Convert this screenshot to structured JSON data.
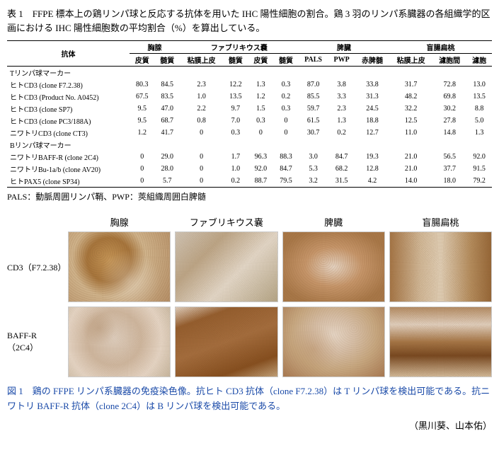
{
  "table_caption": "表 1　FFPE 標本上の鶏リンパ球と反応する抗体を用いた IHC 陽性細胞の割合。鶏 3 羽のリンパ系臓器の各組織学的区画における IHC 陽性細胞数の平均割合（%）を算出している。",
  "header": {
    "antibody": "抗体",
    "organs": [
      "胸腺",
      "ファブリキウス嚢",
      "脾臓",
      "盲腸扁桃"
    ],
    "sub": [
      "皮質",
      "髄質",
      "粘膜上皮",
      "髄質",
      "皮質",
      "髄質",
      "PALS",
      "PWP",
      "赤脾髄",
      "粘膜上皮",
      "濾胞間",
      "濾胞"
    ]
  },
  "sections": [
    {
      "label": "Tリンパ球マーカー"
    },
    {
      "label": "Bリンパ球マーカー"
    }
  ],
  "rows_t": [
    {
      "name": "ヒトCD3 (clone F7.2.38)",
      "v": [
        "80.3",
        "84.5",
        "2.3",
        "12.2",
        "1.3",
        "0.3",
        "87.0",
        "3.8",
        "33.8",
        "31.7",
        "72.8",
        "13.0"
      ]
    },
    {
      "name": "ヒトCD3 (Product No. A0452)",
      "v": [
        "67.5",
        "83.5",
        "1.0",
        "13.5",
        "1.2",
        "0.2",
        "85.5",
        "3.3",
        "31.3",
        "48.2",
        "69.8",
        "13.5"
      ]
    },
    {
      "name": "ヒトCD3 (clone SP7)",
      "v": [
        "9.5",
        "47.0",
        "2.2",
        "9.7",
        "1.5",
        "0.3",
        "59.7",
        "2.3",
        "24.5",
        "32.2",
        "30.2",
        "8.8"
      ]
    },
    {
      "name": "ヒトCD3 (clone PC3/188A)",
      "v": [
        "9.5",
        "68.7",
        "0.8",
        "7.0",
        "0.3",
        "0",
        "61.5",
        "1.3",
        "18.8",
        "12.5",
        "27.8",
        "5.0"
      ]
    },
    {
      "name": "ニワトリCD3 (clone CT3)",
      "v": [
        "1.2",
        "41.7",
        "0",
        "0.3",
        "0",
        "0",
        "30.7",
        "0.2",
        "12.7",
        "11.0",
        "14.8",
        "1.3"
      ]
    }
  ],
  "rows_b": [
    {
      "name": "ニワトリBAFF-R (clone 2C4)",
      "v": [
        "0",
        "29.0",
        "0",
        "1.7",
        "96.3",
        "88.3",
        "3.0",
        "84.7",
        "19.3",
        "21.0",
        "56.5",
        "92.0"
      ]
    },
    {
      "name": "ニワトリBu-1a/b (clone AV20)",
      "v": [
        "0",
        "28.0",
        "0",
        "1.0",
        "92.0",
        "84.7",
        "5.3",
        "68.2",
        "12.8",
        "21.0",
        "37.7",
        "91.5"
      ]
    },
    {
      "name": "ヒトPAX5 (clone SP34)",
      "v": [
        "0",
        "5.7",
        "0",
        "0.2",
        "88.7",
        "79.5",
        "3.2",
        "31.5",
        "4.2",
        "14.0",
        "18.0",
        "79.2"
      ]
    }
  ],
  "note": "PALS：動脈周囲リンパ鞘、PWP：莢組織周囲白脾髄",
  "figure": {
    "col_headers": [
      "胸腺",
      "ファブリキウス嚢",
      "脾臓",
      "盲腸扁桃"
    ],
    "row_labels": [
      "CD3（F7.2.38）",
      "BAFF-R（2C4）"
    ]
  },
  "fig_caption": "図 1　鶏の FFPE リンパ系臓器の免疫染色像。抗ヒト CD3 抗体（clone F7.2.38）は T リンパ球を検出可能である。抗ニワトリ BAFF-R 抗体（clone 2C4）は B リンパ球を検出可能である。",
  "authors": "（黒川葵、山本佑）"
}
